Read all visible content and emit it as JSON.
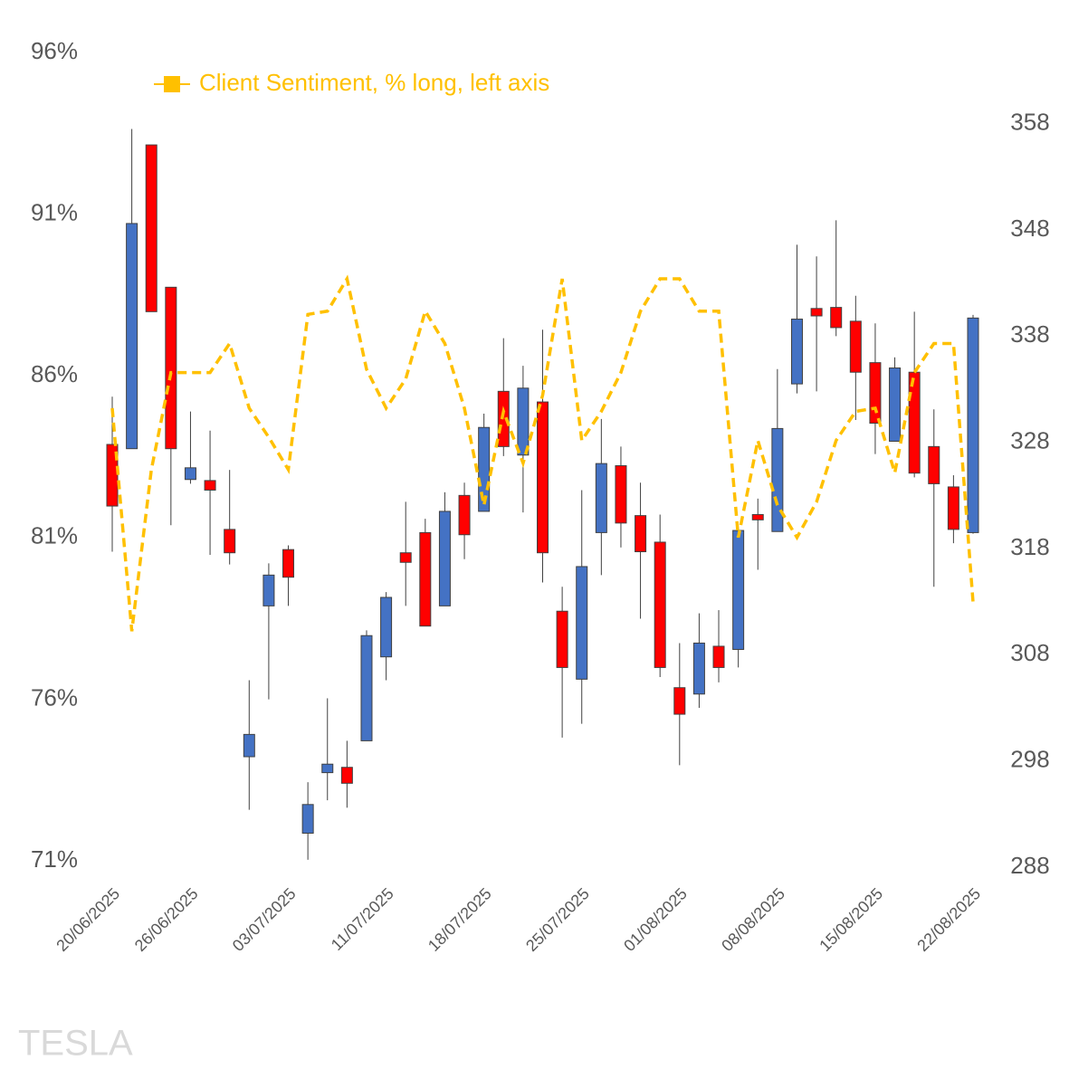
{
  "chart_data": {
    "type": "candlestick",
    "watermark": "TESLA",
    "categories": [
      "20/06/2025",
      null,
      null,
      null,
      "26/06/2025",
      null,
      null,
      null,
      null,
      "03/07/2025",
      null,
      null,
      null,
      null,
      "11/07/2025",
      null,
      null,
      null,
      null,
      "18/07/2025",
      null,
      null,
      null,
      null,
      "25/07/2025",
      null,
      null,
      null,
      null,
      "01/08/2025",
      null,
      null,
      null,
      null,
      "08/08/2025",
      null,
      null,
      null,
      null,
      "15/08/2025",
      null,
      null,
      null,
      null,
      "22/08/2025"
    ],
    "candles": {
      "axis": "y2",
      "up_color": "#4472c4",
      "down_color": "#ff0000",
      "open": [
        327.8,
        327.4,
        356.0,
        342.6,
        324.5,
        324.4,
        319.8,
        298.4,
        312.6,
        317.9,
        291.2,
        296.9,
        297.4,
        299.9,
        307.8,
        317.6,
        319.5,
        312.6,
        323.0,
        321.5,
        332.8,
        326.8,
        331.8,
        312.1,
        305.7,
        319.5,
        325.8,
        321.1,
        318.6,
        304.9,
        304.3,
        308.8,
        308.5,
        321.2,
        319.6,
        333.5,
        340.6,
        340.7,
        339.4,
        335.5,
        328.1,
        334.6,
        327.6,
        323.8,
        319.5
      ],
      "high": [
        332.3,
        357.5,
        356.0,
        342.6,
        330.9,
        329.1,
        325.4,
        305.6,
        316.6,
        318.3,
        296.0,
        303.9,
        299.9,
        310.3,
        313.9,
        322.4,
        320.8,
        323.3,
        324.2,
        330.7,
        337.8,
        335.2,
        338.6,
        314.4,
        323.5,
        330.2,
        327.6,
        324.2,
        321.2,
        309.1,
        311.9,
        312.2,
        319.7,
        322.7,
        334.9,
        346.6,
        345.5,
        348.9,
        341.8,
        339.2,
        336.0,
        340.3,
        331.1,
        324.9,
        340.0
      ],
      "low": [
        317.7,
        327.4,
        340.3,
        320.2,
        324.1,
        317.4,
        316.5,
        293.4,
        303.8,
        312.6,
        288.7,
        294.3,
        293.6,
        299.9,
        305.6,
        312.6,
        310.7,
        312.6,
        317.0,
        321.5,
        326.7,
        321.4,
        314.8,
        300.2,
        301.5,
        315.5,
        318.1,
        311.4,
        305.9,
        297.6,
        303.0,
        305.4,
        306.8,
        316.0,
        319.6,
        332.6,
        332.8,
        338.0,
        330.1,
        326.9,
        328.1,
        324.7,
        314.4,
        318.5,
        319.4
      ],
      "close": [
        322.0,
        348.6,
        340.3,
        327.4,
        325.6,
        323.5,
        317.6,
        300.5,
        315.5,
        315.3,
        293.9,
        297.7,
        295.9,
        309.8,
        313.4,
        316.7,
        310.7,
        321.5,
        319.3,
        329.4,
        327.6,
        333.1,
        317.6,
        306.8,
        316.3,
        326.0,
        320.4,
        317.7,
        306.8,
        302.4,
        309.1,
        306.8,
        319.7,
        320.7,
        329.3,
        339.6,
        339.9,
        338.8,
        334.6,
        329.8,
        335.0,
        325.1,
        324.1,
        319.8,
        339.7
      ]
    },
    "series": [
      {
        "name": "Client Sentiment, % long, left axis",
        "color": "#ffc000",
        "axis": "y",
        "dashed": true,
        "values": [
          85.0,
          78.1,
          83.1,
          86.1,
          86.1,
          86.1,
          87.0,
          85.0,
          84.1,
          83.1,
          87.9,
          88.0,
          89.0,
          86.2,
          85.0,
          85.9,
          88.0,
          87.0,
          85.0,
          82.0,
          84.9,
          83.3,
          85.4,
          89.0,
          84.0,
          84.9,
          86.1,
          88.0,
          89.0,
          89.0,
          88.0,
          88.0,
          81.0,
          84.0,
          82.0,
          81.0,
          82.1,
          84.0,
          84.9,
          85.0,
          83.0,
          86.1,
          87.0,
          87.0,
          79.0
        ]
      }
    ],
    "ylim": [
      71,
      96
    ],
    "yticks": [
      {
        "value": 71,
        "label": "71%"
      },
      {
        "value": 76,
        "label": "76%"
      },
      {
        "value": 81,
        "label": "81%"
      },
      {
        "value": 86,
        "label": "86%"
      },
      {
        "value": 91,
        "label": "91%"
      },
      {
        "value": 96,
        "label": "96%"
      }
    ],
    "y2lim": [
      288.6,
      364.7
    ],
    "y2ticks": [
      288,
      298,
      308,
      318,
      328,
      338,
      348,
      358
    ],
    "grid": false,
    "legend": "top-left"
  }
}
